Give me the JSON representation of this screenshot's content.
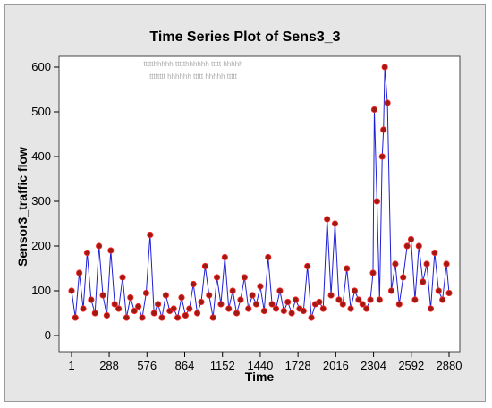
{
  "chart_data": {
    "type": "line",
    "title": "Time Series Plot of Sens3_3",
    "xlabel": "Time",
    "ylabel": "Sensor3_traffic flow",
    "xlim": [
      1,
      2880
    ],
    "ylim": [
      0,
      600
    ],
    "x_ticks": [
      "1",
      "288",
      "576",
      "864",
      "1152",
      "1440",
      "1728",
      "2016",
      "2304",
      "2592",
      "2880"
    ],
    "y_ticks": [
      "0",
      "100",
      "200",
      "300",
      "400",
      "500",
      "600"
    ],
    "grid": false,
    "legend": "none",
    "series": [
      {
        "line_color": "#1f1fd6",
        "marker_color": "#a01a14",
        "x": [
          1,
          30,
          60,
          90,
          120,
          150,
          180,
          210,
          240,
          270,
          300,
          330,
          360,
          390,
          420,
          450,
          480,
          510,
          540,
          570,
          600,
          630,
          660,
          690,
          720,
          750,
          780,
          810,
          840,
          870,
          900,
          930,
          960,
          990,
          1020,
          1050,
          1080,
          1110,
          1140,
          1170,
          1200,
          1230,
          1260,
          1290,
          1320,
          1350,
          1380,
          1410,
          1440,
          1470,
          1500,
          1530,
          1560,
          1590,
          1620,
          1650,
          1680,
          1710,
          1740,
          1770,
          1800,
          1830,
          1860,
          1890,
          1920,
          1950,
          1980,
          2010,
          2040,
          2070,
          2100,
          2130,
          2160,
          2190,
          2220,
          2250,
          2280,
          2300,
          2310,
          2330,
          2350,
          2370,
          2380,
          2390,
          2410,
          2440,
          2470,
          2500,
          2530,
          2560,
          2590,
          2620,
          2650,
          2680,
          2710,
          2740,
          2770,
          2800,
          2830,
          2860,
          2880
        ],
        "values": [
          100,
          40,
          140,
          60,
          185,
          80,
          50,
          200,
          90,
          45,
          190,
          70,
          60,
          130,
          40,
          85,
          55,
          65,
          40,
          95,
          225,
          50,
          70,
          40,
          90,
          55,
          60,
          40,
          85,
          45,
          60,
          115,
          50,
          75,
          155,
          90,
          40,
          130,
          70,
          175,
          60,
          100,
          50,
          80,
          130,
          60,
          90,
          70,
          110,
          55,
          175,
          70,
          60,
          100,
          55,
          75,
          50,
          80,
          60,
          55,
          155,
          40,
          70,
          75,
          60,
          260,
          90,
          250,
          80,
          70,
          150,
          60,
          100,
          80,
          70,
          60,
          80,
          140,
          505,
          300,
          80,
          400,
          460,
          600,
          520,
          100,
          160,
          70,
          130,
          200,
          215,
          80,
          200,
          120,
          160,
          60,
          185,
          100,
          80,
          160,
          95
        ]
      }
    ]
  },
  "watermark": {
    "lines": [
      "ttttthhhhh ttttthhhhhh ttttt hhhhh",
      "tttttttt hhhhhh ttttt hhhhh ttttt"
    ]
  }
}
